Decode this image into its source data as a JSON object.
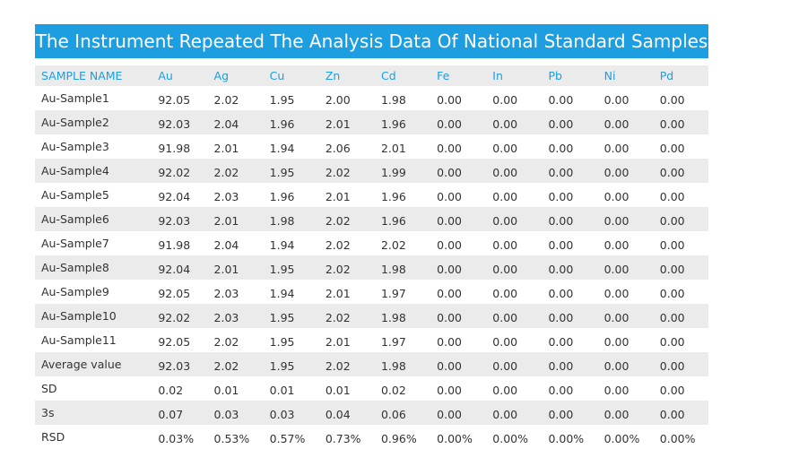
{
  "title": "The Instrument Repeated The Analysis Data Of National Standard Samples",
  "columns": [
    "SAMPLE NAME",
    "Au",
    "Ag",
    "Cu",
    "Zn",
    "Cd",
    "Fe",
    "In",
    "Pb",
    "Ni",
    "Pd"
  ],
  "rows": [
    [
      "Au-Sample1",
      "92.05",
      "2.02",
      "1.95",
      "2.00",
      "1.98",
      "0.00",
      "0.00",
      "0.00",
      "0.00",
      "0.00"
    ],
    [
      "Au-Sample2",
      "92.03",
      "2.04",
      "1.96",
      "2.01",
      "1.96",
      "0.00",
      "0.00",
      "0.00",
      "0.00",
      "0.00"
    ],
    [
      "Au-Sample3",
      "91.98",
      "2.01",
      "1.94",
      "2.06",
      "2.01",
      "0.00",
      "0.00",
      "0.00",
      "0.00",
      "0.00"
    ],
    [
      "Au-Sample4",
      "92.02",
      "2.02",
      "1.95",
      "2.02",
      "1.99",
      "0.00",
      "0.00",
      "0.00",
      "0.00",
      "0.00"
    ],
    [
      "Au-Sample5",
      "92.04",
      "2.03",
      "1.96",
      "2.01",
      "1.96",
      "0.00",
      "0.00",
      "0.00",
      "0.00",
      "0.00"
    ],
    [
      "Au-Sample6",
      "92.03",
      "2.01",
      "1.98",
      "2.02",
      "1.96",
      "0.00",
      "0.00",
      "0.00",
      "0.00",
      "0.00"
    ],
    [
      "Au-Sample7",
      "91.98",
      "2.04",
      "1.94",
      "2.02",
      "2.02",
      "0.00",
      "0.00",
      "0.00",
      "0.00",
      "0.00"
    ],
    [
      "Au-Sample8",
      "92.04",
      "2.01",
      "1.95",
      "2.02",
      "1.98",
      "0.00",
      "0.00",
      "0.00",
      "0.00",
      "0.00"
    ],
    [
      "Au-Sample9",
      "92.05",
      "2.03",
      "1.94",
      "2.01",
      "1.97",
      "0.00",
      "0.00",
      "0.00",
      "0.00",
      "0.00"
    ],
    [
      "Au-Sample10",
      "92.02",
      "2.03",
      "1.95",
      "2.02",
      "1.98",
      "0.00",
      "0.00",
      "0.00",
      "0.00",
      "0.00"
    ],
    [
      "Au-Sample11",
      "92.05",
      "2.02",
      "1.95",
      "2.01",
      "1.97",
      "0.00",
      "0.00",
      "0.00",
      "0.00",
      "0.00"
    ],
    [
      "Average value",
      "92.03",
      "2.02",
      "1.95",
      "2.02",
      "1.98",
      "0.00",
      "0.00",
      "0.00",
      "0.00",
      "0.00"
    ],
    [
      "SD",
      "0.02",
      "0.01",
      "0.01",
      "0.01",
      "0.02",
      "0.00",
      "0.00",
      "0.00",
      "0.00",
      "0.00"
    ],
    [
      "3s",
      "0.07",
      "0.03",
      "0.03",
      "0.04",
      "0.06",
      "0.00",
      "0.00",
      "0.00",
      "0.00",
      "0.00"
    ],
    [
      "RSD",
      "0.03%",
      "0.53%",
      "0.57%",
      "0.73%",
      "0.96%",
      "0.00%",
      "0.00%",
      "0.00%",
      "0.00%",
      "0.00%"
    ]
  ],
  "colors": {
    "accent": "#1c9ee0",
    "stripe": "#ebebeb",
    "text": "#333333"
  }
}
